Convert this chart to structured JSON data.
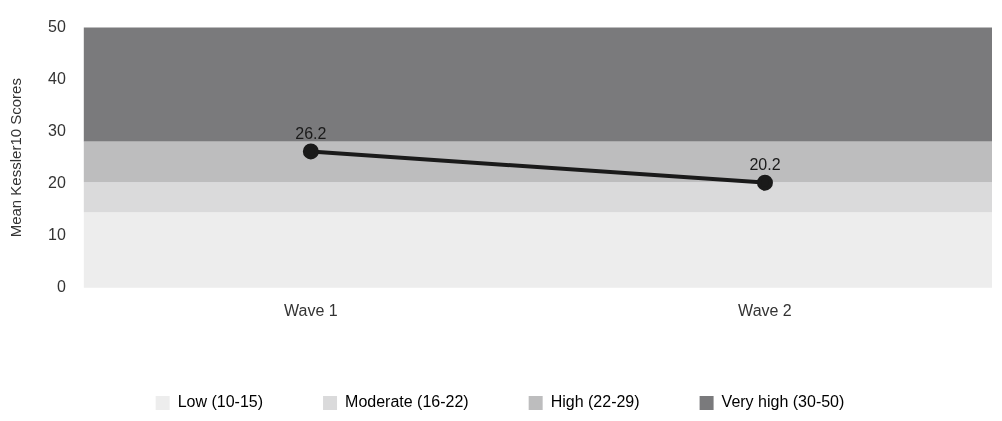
{
  "chart_data": {
    "type": "line",
    "ylabel": "Mean Kessler10 Scores",
    "categories": [
      "Wave 1",
      "Wave 2"
    ],
    "series": [
      {
        "color": "#1a1a1a",
        "values": [
          26.2,
          20.2
        ]
      }
    ],
    "ylim": [
      0,
      50
    ],
    "yticks": [
      0,
      10,
      20,
      30,
      40,
      50
    ],
    "grid": false,
    "legend": "bottom",
    "marker": "circle",
    "line_style": "solid",
    "data_labels": true,
    "bands": [
      {
        "axis": "y",
        "from": 0,
        "to": 14.5,
        "label": "Low (10-15)",
        "color": "#ededed"
      },
      {
        "axis": "y",
        "from": 14.5,
        "to": 20.3,
        "label": "Moderate (16-22)",
        "color": "#dadadb"
      },
      {
        "axis": "y",
        "from": 20.3,
        "to": 28.1,
        "label": "High (22-29)",
        "color": "#bdbdbe"
      },
      {
        "axis": "y",
        "from": 28.1,
        "to": 50,
        "label": "Very high (30-50)",
        "color": "#7a7a7c"
      }
    ]
  }
}
